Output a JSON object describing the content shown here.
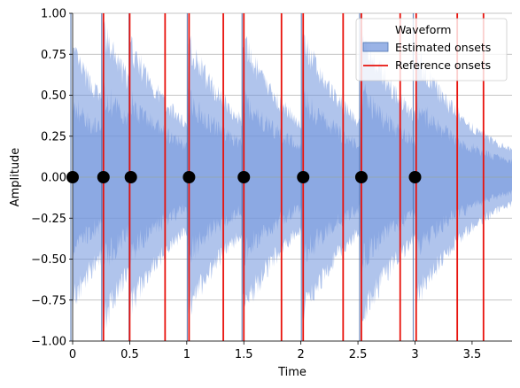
{
  "chart_data": {
    "type": "line",
    "title": "",
    "xlabel": "Time",
    "ylabel": "Amplitude",
    "xlim": [
      0,
      3.85
    ],
    "ylim": [
      -1.0,
      1.0
    ],
    "x_ticks": [
      0,
      0.5,
      1,
      1.5,
      2,
      2.5,
      3,
      3.5
    ],
    "x_tick_labels": [
      "0",
      "0.5",
      "1",
      "1.5",
      "2",
      "2.5",
      "3",
      "3.5"
    ],
    "y_ticks": [
      -1.0,
      -0.75,
      -0.5,
      -0.25,
      0.0,
      0.25,
      0.5,
      0.75,
      1.0
    ],
    "y_tick_labels": [
      "−1.00",
      "−0.75",
      "−0.50",
      "−0.25",
      "0.00",
      "0.25",
      "0.50",
      "0.75",
      "1.00"
    ],
    "grid": "y",
    "legend": {
      "placement": "top-right",
      "entries": [
        "Waveform",
        "Estimated onsets",
        "Reference onsets"
      ]
    },
    "waveform": {
      "name": "Waveform",
      "color": "#6f93dc",
      "envelope_peaks": [
        {
          "t": 0.0,
          "a": 0.85
        },
        {
          "t": 0.27,
          "a": 0.98
        },
        {
          "t": 0.51,
          "a": 0.88
        },
        {
          "t": 1.02,
          "a": 0.9
        },
        {
          "t": 1.5,
          "a": 0.9
        },
        {
          "t": 2.02,
          "a": 0.92
        },
        {
          "t": 2.53,
          "a": 0.98
        },
        {
          "t": 3.02,
          "a": 0.82
        }
      ]
    },
    "estimated_onsets": {
      "name": "Estimated onsets",
      "color": "#000000",
      "values": [
        0.0,
        0.27,
        0.51,
        1.02,
        1.5,
        2.02,
        2.53,
        3.0
      ]
    },
    "reference_onsets": {
      "name": "Reference onsets",
      "color": "#e8120c",
      "values": [
        0.27,
        0.5,
        0.81,
        1.02,
        1.32,
        1.5,
        1.83,
        2.02,
        2.37,
        2.53,
        2.87,
        3.01,
        3.37,
        3.6
      ]
    }
  }
}
